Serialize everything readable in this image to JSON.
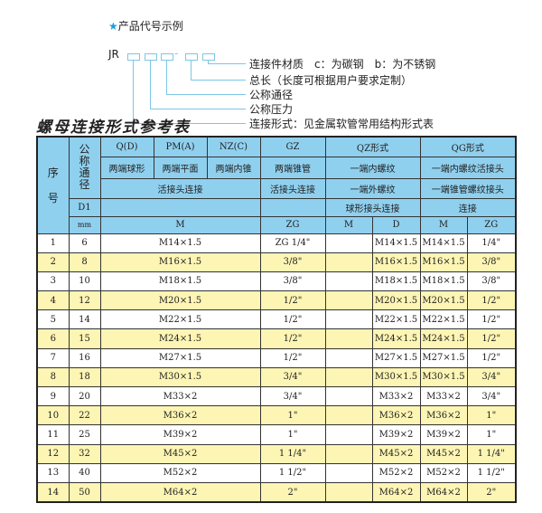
{
  "legend": {
    "star": "★",
    "heading": "产品代号示例",
    "code_prefix": "JR",
    "dash": "-",
    "items": [
      "连接件材质　c：为碳钢　b：为不锈钢",
      "总长（长度可根据用户要求定制）",
      "公称通径",
      "公称压力",
      "连接形式：见金属软管常用结构形式表"
    ]
  },
  "title": "螺母连接形式参考表",
  "colors": {
    "header": "#90d0ef",
    "alt_row": "#fdf5b4",
    "legend_line": "#7cc6e6"
  },
  "header": {
    "seq": "序号",
    "seq1": "序",
    "seq2": "号",
    "nominal": "公称通径",
    "d1": "D1",
    "mm": "mm",
    "qd": "Q(D)",
    "pm": "PM(A)",
    "nz": "NZ(C)",
    "gz": "GZ",
    "qz": "QZ形式",
    "qg": "QG形式",
    "qd_desc": "两端球形",
    "pm_desc": "两端平面",
    "nz_desc": "两端内锥",
    "gz_desc": "两端锥管",
    "qz_desc": "一端内螺纹",
    "qg_desc": "一端内螺纹活接头",
    "union": "活接头连接",
    "gz_union": "活接头连接",
    "qz_desc2": "一端外螺纹",
    "qg_desc2": "一端锥管螺纹接头",
    "qz_desc3": "球形接头连接",
    "qg_desc3": "连接",
    "m": "M",
    "zg": "ZG",
    "qz_m": "M",
    "qz_d": "D",
    "qg_m": "M",
    "qg_zg": "ZG"
  },
  "rows": [
    {
      "no": "1",
      "dn": "6",
      "m": "M14×1.5",
      "zg": "ZG 1/4\"",
      "qzm": "",
      "qzd": "M14×1.5",
      "qgm": "M14×1.5",
      "qgzg": "1/4\""
    },
    {
      "no": "2",
      "dn": "8",
      "m": "M16×1.5",
      "zg": "3/8\"",
      "qzm": "",
      "qzd": "M16×1.5",
      "qgm": "M16×1.5",
      "qgzg": "3/8\""
    },
    {
      "no": "3",
      "dn": "10",
      "m": "M18×1.5",
      "zg": "3/8\"",
      "qzm": "",
      "qzd": "M18×1.5",
      "qgm": "M18×1.5",
      "qgzg": "3/8\""
    },
    {
      "no": "4",
      "dn": "12",
      "m": "M20×1.5",
      "zg": "1/2\"",
      "qzm": "",
      "qzd": "M20×1.5",
      "qgm": "M20×1.5",
      "qgzg": "1/2\""
    },
    {
      "no": "5",
      "dn": "14",
      "m": "M22×1.5",
      "zg": "1/2\"",
      "qzm": "",
      "qzd": "M22×1.5",
      "qgm": "M22×1.5",
      "qgzg": "1/2\""
    },
    {
      "no": "6",
      "dn": "15",
      "m": "M24×1.5",
      "zg": "1/2\"",
      "qzm": "",
      "qzd": "M24×1.5",
      "qgm": "M24×1.5",
      "qgzg": "1/2\""
    },
    {
      "no": "7",
      "dn": "16",
      "m": "M27×1.5",
      "zg": "1/2\"",
      "qzm": "",
      "qzd": "M27×1.5",
      "qgm": "M27×1.5",
      "qgzg": "1/2\""
    },
    {
      "no": "8",
      "dn": "18",
      "m": "M30×1.5",
      "zg": "3/4\"",
      "qzm": "",
      "qzd": "M30×1.5",
      "qgm": "M30×1.5",
      "qgzg": "3/4\""
    },
    {
      "no": "9",
      "dn": "20",
      "m": "M33×2",
      "zg": "3/4\"",
      "qzm": "",
      "qzd": "M33×2",
      "qgm": "M33×2",
      "qgzg": "3/4\""
    },
    {
      "no": "10",
      "dn": "22",
      "m": "M36×2",
      "zg": "1\"",
      "qzm": "",
      "qzd": "M36×2",
      "qgm": "M36×2",
      "qgzg": "1\""
    },
    {
      "no": "11",
      "dn": "25",
      "m": "M39×2",
      "zg": "1\"",
      "qzm": "",
      "qzd": "M39×2",
      "qgm": "M39×2",
      "qgzg": "1\""
    },
    {
      "no": "12",
      "dn": "32",
      "m": "M45×2",
      "zg": "1 1/4\"",
      "qzm": "",
      "qzd": "M45×2",
      "qgm": "M45×2",
      "qgzg": "1 1/4\""
    },
    {
      "no": "13",
      "dn": "40",
      "m": "M52×2",
      "zg": "1 1/2\"",
      "qzm": "",
      "qzd": "M52×2",
      "qgm": "M52×2",
      "qgzg": "1 1/2\""
    },
    {
      "no": "14",
      "dn": "50",
      "m": "M64×2",
      "zg": "2\"",
      "qzm": "",
      "qzd": "M64×2",
      "qgm": "M64×2",
      "qgzg": "2\""
    }
  ]
}
